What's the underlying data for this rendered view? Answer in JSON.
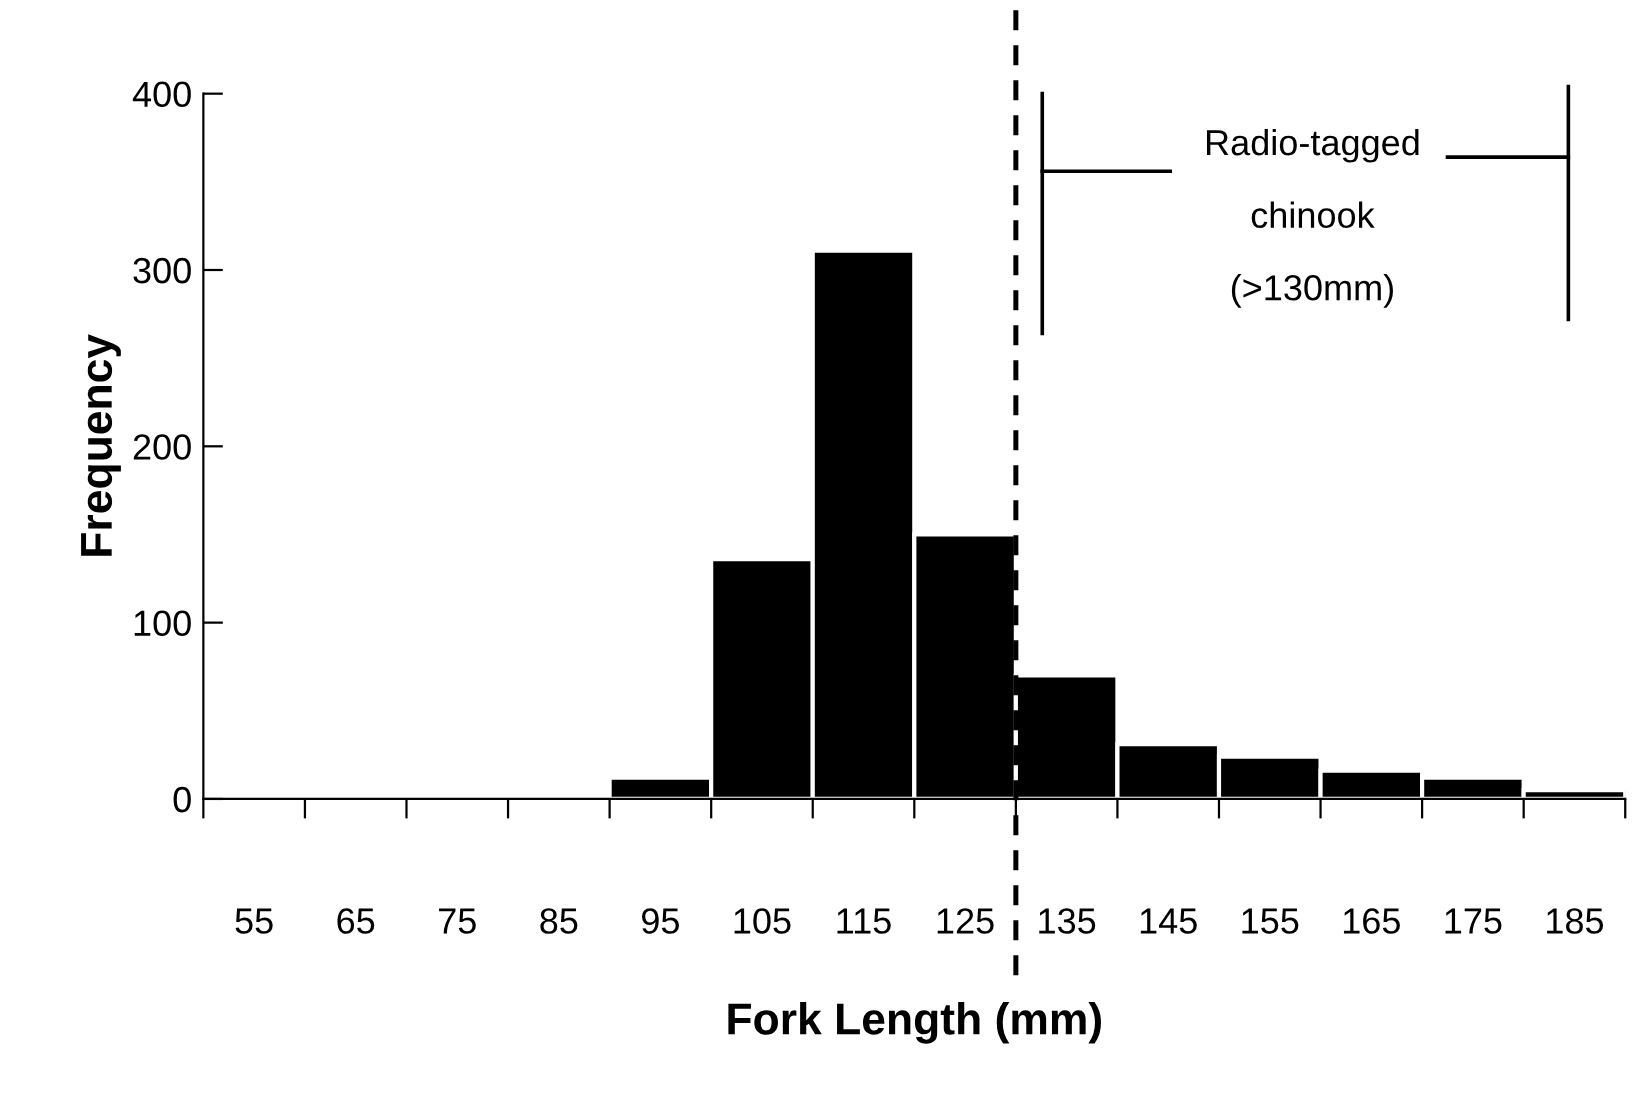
{
  "chart_data": {
    "type": "histogram",
    "xlabel": "Fork Length (mm)",
    "ylabel": "Frequency",
    "bins": [
      50,
      60,
      70,
      80,
      90,
      100,
      110,
      120,
      130,
      140,
      150,
      160,
      170,
      180,
      190
    ],
    "values": [
      0,
      0,
      0,
      0,
      12,
      136,
      311,
      150,
      70,
      31,
      24,
      16,
      12,
      5
    ],
    "color": "#000000",
    "xlim": [
      50,
      190
    ],
    "xticks": [
      {
        "value": 50,
        "label": null
      },
      {
        "value": 60,
        "label": null
      },
      {
        "value": 70,
        "label": null
      },
      {
        "value": 80,
        "label": null
      },
      {
        "value": 90,
        "label": null
      },
      {
        "value": 100,
        "label": null
      },
      {
        "value": 110,
        "label": null
      },
      {
        "value": 120,
        "label": null
      },
      {
        "value": 130,
        "label": null
      },
      {
        "value": 140,
        "label": null
      },
      {
        "value": 150,
        "label": null
      },
      {
        "value": 160,
        "label": null
      },
      {
        "value": 170,
        "label": null
      },
      {
        "value": 180,
        "label": null
      },
      {
        "value": 190,
        "label": null
      },
      55,
      65,
      75,
      85,
      95,
      105,
      115,
      125,
      135,
      145,
      155,
      165,
      175,
      185
    ],
    "ylim": [
      0,
      400
    ],
    "yticks": [
      0,
      100,
      200,
      300,
      400
    ],
    "grid": false,
    "ref_lines": [
      {
        "axis": "x",
        "value": 130,
        "line_style": "dashed",
        "color": "#000000"
      }
    ],
    "annotations": [
      "Radio-tagged\n\nchinook\n\n(>130mm)"
    ]
  }
}
